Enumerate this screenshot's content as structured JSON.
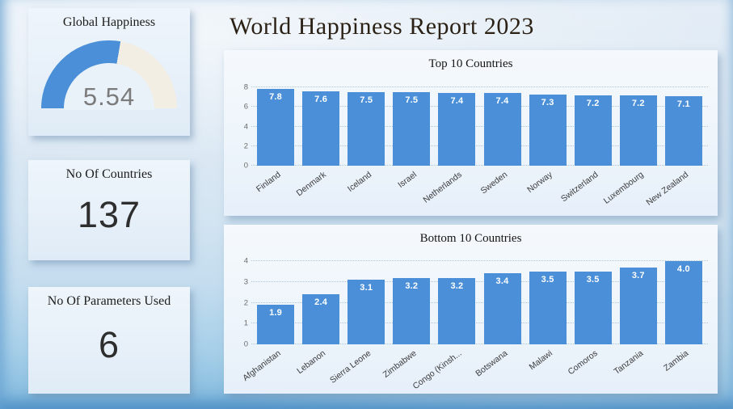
{
  "report": {
    "title": "World Happiness Report 2023"
  },
  "nav": {
    "arrow_icon": "right-arrow"
  },
  "cards": {
    "global_happiness": {
      "title": "Global Happiness",
      "value": "5.54"
    },
    "no_of_countries": {
      "title": "No Of Countries",
      "value": "137"
    },
    "no_of_parameters": {
      "title": "No Of Parameters Used",
      "value": "6"
    }
  },
  "gauge": {
    "value": 5.54,
    "min": 0,
    "max": 10
  },
  "colors": {
    "bar": "#4a8fd8",
    "arrow": "#1a63c6",
    "gauge_fill": "#4a8fd8",
    "gauge_track": "#f2eee4"
  },
  "chart_data": [
    {
      "type": "bar",
      "title": "Top 10 Countries",
      "categories": [
        "Finland",
        "Denmark",
        "Iceland",
        "Israel",
        "Netherlands",
        "Sweden",
        "Norway",
        "Switzerland",
        "Luxembourg",
        "New Zealand"
      ],
      "values": [
        7.8,
        7.6,
        7.5,
        7.5,
        7.4,
        7.4,
        7.3,
        7.2,
        7.2,
        7.1
      ],
      "xlabel": "",
      "ylabel": "",
      "ylim": [
        0,
        8
      ],
      "yticks": [
        0,
        2,
        4,
        6,
        8
      ],
      "grid": "horizontal-dotted",
      "legend": "none",
      "value_labels": "inside-top",
      "bar_color": "#4a8fd8"
    },
    {
      "type": "bar",
      "title": "Bottom 10 Countries",
      "categories": [
        "Afghanistan",
        "Lebanon",
        "Sierra Leone",
        "Zimbabwe",
        "Congo (Kinsh...",
        "Botswana",
        "Malawi",
        "Comoros",
        "Tanzania",
        "Zambia"
      ],
      "values": [
        1.9,
        2.4,
        3.1,
        3.2,
        3.2,
        3.4,
        3.5,
        3.5,
        3.7,
        4.0
      ],
      "xlabel": "",
      "ylabel": "",
      "ylim": [
        0,
        4
      ],
      "yticks": [
        0,
        1,
        2,
        3,
        4
      ],
      "grid": "horizontal-dotted",
      "legend": "none",
      "value_labels": "inside-top",
      "bar_color": "#4a8fd8"
    }
  ]
}
